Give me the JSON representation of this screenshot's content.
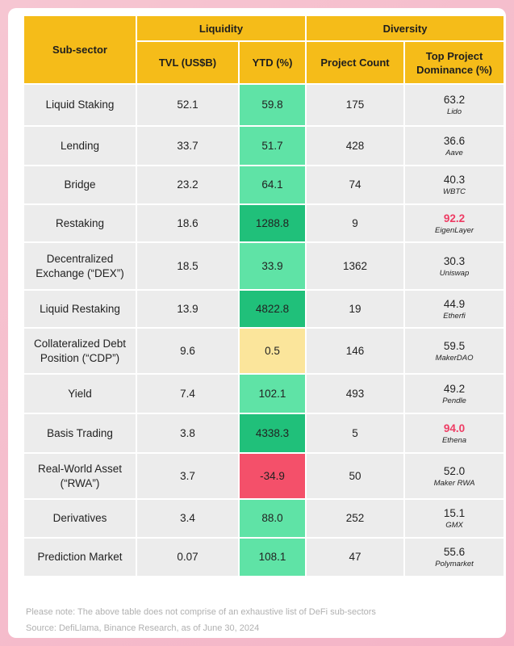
{
  "table": {
    "header": {
      "sub_sector": "Sub-sector",
      "liquidity": "Liquidity",
      "diversity": "Diversity",
      "columns": [
        "TVL (US$B)",
        "YTD (%)",
        "Project Count",
        "Top Project Dominance (%)"
      ]
    },
    "rows": [
      {
        "sub_sector": "Liquid Staking",
        "tvl": "52.1",
        "ytd": "59.8",
        "project_count": "175",
        "dominance": "63.2",
        "top_project": "Lido"
      },
      {
        "sub_sector": "Lending",
        "tvl": "33.7",
        "ytd": "51.7",
        "project_count": "428",
        "dominance": "36.6",
        "top_project": "Aave"
      },
      {
        "sub_sector": "Bridge",
        "tvl": "23.2",
        "ytd": "64.1",
        "project_count": "74",
        "dominance": "40.3",
        "top_project": "WBTC"
      },
      {
        "sub_sector": "Restaking",
        "tvl": "18.6",
        "ytd": "1288.8",
        "project_count": "9",
        "dominance": "92.2",
        "top_project": "EigenLayer"
      },
      {
        "sub_sector": "Decentralized Exchange (“DEX”)",
        "tvl": "18.5",
        "ytd": "33.9",
        "project_count": "1362",
        "dominance": "30.3",
        "top_project": "Uniswap"
      },
      {
        "sub_sector": "Liquid Restaking",
        "tvl": "13.9",
        "ytd": "4822.8",
        "project_count": "19",
        "dominance": "44.9",
        "top_project": "Etherfi"
      },
      {
        "sub_sector": "Collateralized Debt Position (“CDP”)",
        "tvl": "9.6",
        "ytd": "0.5",
        "project_count": "146",
        "dominance": "59.5",
        "top_project": "MakerDAO"
      },
      {
        "sub_sector": "Yield",
        "tvl": "7.4",
        "ytd": "102.1",
        "project_count": "493",
        "dominance": "49.2",
        "top_project": "Pendle"
      },
      {
        "sub_sector": "Basis Trading",
        "tvl": "3.8",
        "ytd": "4338.3",
        "project_count": "5",
        "dominance": "94.0",
        "top_project": "Ethena"
      },
      {
        "sub_sector": "Real-World Asset (“RWA”)",
        "tvl": "3.7",
        "ytd": "-34.9",
        "project_count": "50",
        "dominance": "52.0",
        "top_project": "Maker RWA"
      },
      {
        "sub_sector": "Derivatives",
        "tvl": "3.4",
        "ytd": "88.0",
        "project_count": "252",
        "dominance": "15.1",
        "top_project": "GMX"
      },
      {
        "sub_sector": "Prediction Market",
        "tvl": "0.07",
        "ytd": "108.1",
        "project_count": "47",
        "dominance": "55.6",
        "top_project": "Polymarket"
      }
    ]
  },
  "notes": [
    "Please note: The above table does not comprise of an exhaustive list of DeFi sub-sectors",
    "Source: DefiLlama, Binance Research, as of June 30, 2024"
  ]
}
